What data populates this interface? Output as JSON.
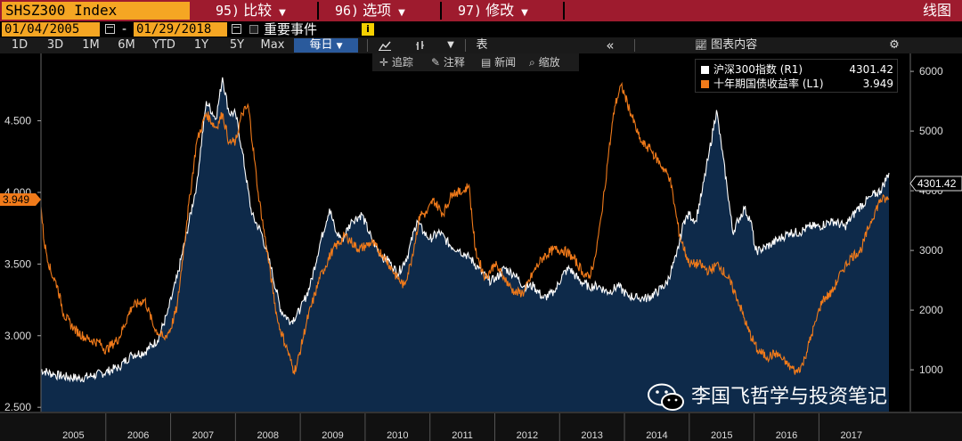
{
  "command_bar": {
    "ticker": "SHSZ300 Index",
    "menus": [
      {
        "num": "95)",
        "label": "比较"
      },
      {
        "num": "96)",
        "label": "选项"
      },
      {
        "num": "97)",
        "label": "修改"
      }
    ],
    "view_name": "线图"
  },
  "date_range": {
    "start": "01/04/2005",
    "separator": "-",
    "end": "01/29/2018",
    "events_label": "重要事件",
    "info_icon": "i"
  },
  "toolbar": {
    "periods": [
      "1D",
      "3D",
      "1M",
      "6M",
      "YTD",
      "1Y",
      "5Y",
      "Max"
    ],
    "frequency": "每日",
    "table_label": "表",
    "collapse_label": "«",
    "chart_content_label": "图表内容",
    "icons": [
      "line-chart-icon",
      "bar-chart-icon",
      "dropdown-icon",
      "collapse-icon",
      "chart-content-icon",
      "gear-icon"
    ]
  },
  "annotation_bar": {
    "buttons": [
      {
        "icon": "crosshair-icon",
        "label": "追踪"
      },
      {
        "icon": "pencil-icon",
        "label": "注释"
      },
      {
        "icon": "news-icon",
        "label": "新闻"
      },
      {
        "icon": "magnifier-icon",
        "label": "缩放"
      }
    ]
  },
  "legend": {
    "items": [
      {
        "label": "沪深300指数 (R1)",
        "value": "4301.42",
        "color": "#ffffff"
      },
      {
        "label": "十年期国债收益率 (L1)",
        "value": "3.949",
        "color": "#f07a1a"
      }
    ]
  },
  "colors": {
    "index_line": "#ffffff",
    "index_area": "#0e2a4a",
    "yield_line": "#f07a1a",
    "command_bar": "#9e1b2e",
    "ticker_bg": "#f5a623"
  },
  "watermark": {
    "text": "李国飞哲学与投资笔记",
    "icon": "wechat-logo-icon"
  },
  "chart_data": {
    "type": "line",
    "x_ticks": [
      "2005",
      "2006",
      "2007",
      "2008",
      "2009",
      "2010",
      "2011",
      "2012",
      "2013",
      "2014",
      "2015",
      "2016",
      "2017"
    ],
    "xlim": [
      2005.0,
      2018.08
    ],
    "left_axis": {
      "ticks": [
        "2.500",
        "3.000",
        "3.500",
        "4.000",
        "4.500"
      ],
      "ylim": [
        2.47,
        4.97
      ],
      "last_value_label": "3.949"
    },
    "right_axis": {
      "ticks": [
        "1000",
        "2000",
        "3000",
        "4000",
        "5000",
        "6000"
      ],
      "ylim": [
        300,
        6300
      ],
      "last_value_label": "4301.42"
    },
    "grid": false,
    "legend_placement": "top-right",
    "series": [
      {
        "name": "沪深300指数",
        "axis": "right",
        "style": "area",
        "x": [
          2005.0,
          2005.2,
          2005.4,
          2005.6,
          2005.8,
          2006.0,
          2006.2,
          2006.4,
          2006.6,
          2006.8,
          2006.95,
          2007.1,
          2007.25,
          2007.4,
          2007.55,
          2007.7,
          2007.8,
          2007.9,
          2008.0,
          2008.1,
          2008.25,
          2008.4,
          2008.55,
          2008.7,
          2008.85,
          2009.0,
          2009.15,
          2009.3,
          2009.45,
          2009.55,
          2009.65,
          2009.8,
          2009.95,
          2010.1,
          2010.25,
          2010.4,
          2010.5,
          2010.65,
          2010.8,
          2010.9,
          2011.0,
          2011.15,
          2011.3,
          2011.45,
          2011.6,
          2011.75,
          2011.9,
          2012.0,
          2012.15,
          2012.3,
          2012.45,
          2012.6,
          2012.75,
          2012.92,
          2013.05,
          2013.15,
          2013.3,
          2013.45,
          2013.6,
          2013.75,
          2013.9,
          2014.05,
          2014.2,
          2014.35,
          2014.5,
          2014.65,
          2014.8,
          2014.92,
          2015.0,
          2015.1,
          2015.2,
          2015.3,
          2015.42,
          2015.5,
          2015.58,
          2015.67,
          2015.75,
          2015.85,
          2015.95,
          2016.02,
          2016.1,
          2016.25,
          2016.4,
          2016.55,
          2016.7,
          2016.85,
          2017.0,
          2017.2,
          2017.4,
          2017.6,
          2017.8,
          2017.95,
          2018.08
        ],
        "values": [
          1000,
          920,
          880,
          860,
          900,
          960,
          1050,
          1250,
          1300,
          1500,
          1950,
          2550,
          3300,
          4100,
          5500,
          5200,
          5900,
          5300,
          5300,
          4700,
          3600,
          3300,
          2700,
          2000,
          1800,
          2000,
          2400,
          3100,
          3700,
          3300,
          3200,
          3500,
          3600,
          3200,
          2900,
          2800,
          2600,
          2900,
          3500,
          3300,
          3200,
          3300,
          3100,
          3000,
          2900,
          2700,
          2500,
          2500,
          2700,
          2600,
          2400,
          2400,
          2200,
          2300,
          2600,
          2700,
          2500,
          2400,
          2400,
          2300,
          2400,
          2250,
          2200,
          2200,
          2300,
          2450,
          2900,
          3500,
          3600,
          3500,
          4000,
          4600,
          5350,
          4700,
          4100,
          3300,
          3500,
          3700,
          3500,
          3000,
          3000,
          3100,
          3200,
          3300,
          3300,
          3400,
          3400,
          3500,
          3400,
          3700,
          3900,
          4000,
          4300
        ]
      },
      {
        "name": "十年期国债收益率",
        "axis": "left",
        "style": "line",
        "x": [
          2005.0,
          2005.05,
          2005.15,
          2005.25,
          2005.35,
          2005.5,
          2005.7,
          2005.9,
          2006.0,
          2006.2,
          2006.4,
          2006.6,
          2006.75,
          2006.9,
          2007.0,
          2007.1,
          2007.25,
          2007.4,
          2007.55,
          2007.7,
          2007.8,
          2007.9,
          2008.0,
          2008.1,
          2008.2,
          2008.35,
          2008.5,
          2008.65,
          2008.8,
          2008.9,
          2008.95,
          2009.1,
          2009.3,
          2009.5,
          2009.7,
          2009.9,
          2010.1,
          2010.3,
          2010.5,
          2010.6,
          2010.7,
          2010.85,
          2010.95,
          2011.05,
          2011.2,
          2011.35,
          2011.5,
          2011.6,
          2011.7,
          2011.85,
          2012.0,
          2012.15,
          2012.3,
          2012.45,
          2012.6,
          2012.75,
          2012.9,
          2013.05,
          2013.2,
          2013.35,
          2013.45,
          2013.55,
          2013.65,
          2013.75,
          2013.85,
          2013.95,
          2014.1,
          2014.25,
          2014.4,
          2014.55,
          2014.7,
          2014.85,
          2015.0,
          2015.15,
          2015.3,
          2015.45,
          2015.6,
          2015.75,
          2015.9,
          2016.05,
          2016.2,
          2016.35,
          2016.5,
          2016.65,
          2016.75,
          2016.85,
          2016.95,
          2017.05,
          2017.2,
          2017.35,
          2017.5,
          2017.65,
          2017.8,
          2017.95,
          2018.08
        ],
        "values": [
          3.9,
          3.65,
          3.45,
          3.35,
          3.15,
          3.05,
          2.98,
          2.95,
          2.9,
          2.98,
          3.2,
          3.25,
          3.05,
          2.98,
          3.05,
          3.2,
          3.8,
          4.35,
          4.55,
          4.45,
          4.55,
          4.35,
          4.35,
          4.55,
          4.6,
          4.0,
          3.55,
          3.1,
          2.9,
          2.75,
          2.8,
          3.1,
          3.4,
          3.6,
          3.7,
          3.6,
          3.65,
          3.55,
          3.4,
          3.35,
          3.5,
          3.85,
          3.85,
          3.95,
          3.85,
          4.0,
          4.0,
          4.05,
          3.6,
          3.4,
          3.5,
          3.4,
          3.3,
          3.3,
          3.45,
          3.55,
          3.6,
          3.6,
          3.55,
          3.45,
          3.4,
          3.55,
          3.85,
          4.25,
          4.6,
          4.75,
          4.55,
          4.35,
          4.3,
          4.2,
          4.1,
          3.7,
          3.5,
          3.5,
          3.45,
          3.5,
          3.4,
          3.25,
          3.05,
          2.9,
          2.85,
          2.88,
          2.8,
          2.75,
          2.8,
          2.95,
          3.1,
          3.25,
          3.3,
          3.45,
          3.55,
          3.6,
          3.8,
          3.95,
          3.95
        ]
      }
    ]
  }
}
